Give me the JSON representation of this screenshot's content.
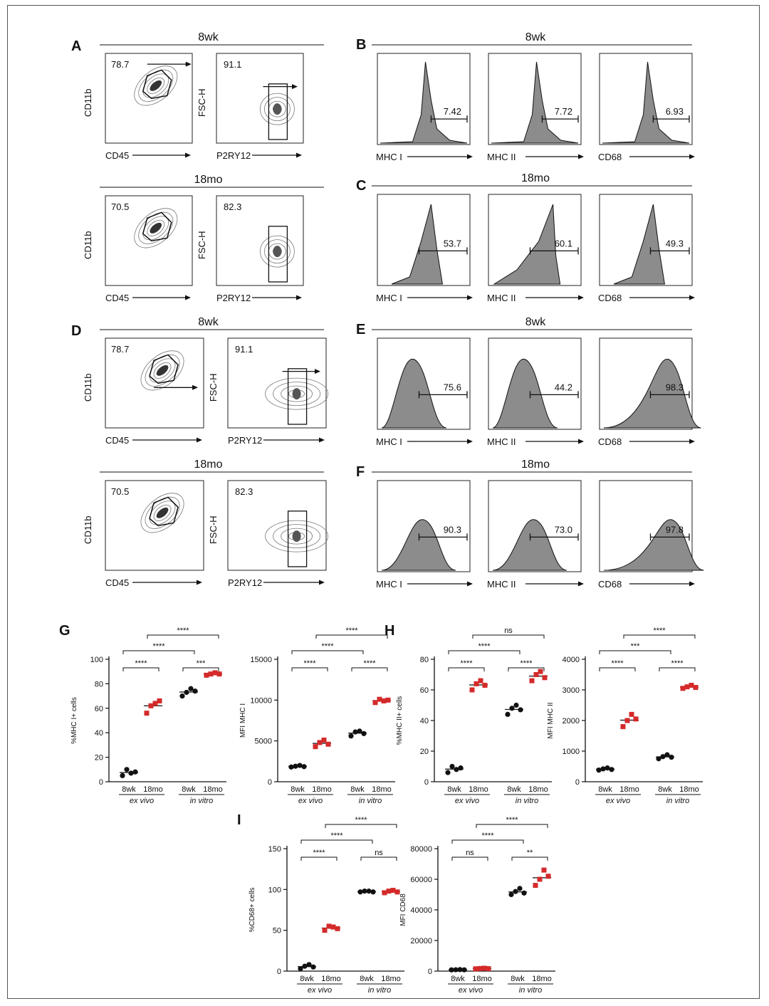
{
  "panels": {
    "A": {
      "letter": "A",
      "top": {
        "title": "8wk",
        "pct1": "78.7",
        "pct2": "91.1"
      },
      "bottom": {
        "title": "18mo",
        "pct1": "70.5",
        "pct2": "82.3"
      },
      "axes": {
        "y1": "CD11b",
        "x1": "CD45",
        "y2": "FSC-H",
        "x2": "P2RY12"
      }
    },
    "B": {
      "letter": "B",
      "title": "8wk",
      "hists": [
        {
          "xlabel": "MHC I",
          "value": "7.42"
        },
        {
          "xlabel": "MHC II",
          "value": "7.72"
        },
        {
          "xlabel": "CD68",
          "value": "6.93"
        }
      ]
    },
    "C": {
      "letter": "C",
      "title": "18mo",
      "hists": [
        {
          "xlabel": "MHC I",
          "value": "53.7"
        },
        {
          "xlabel": "MHC II",
          "value": "60.1"
        },
        {
          "xlabel": "CD68",
          "value": "49.3"
        }
      ]
    },
    "D": {
      "letter": "D",
      "top": {
        "title": "8wk",
        "pct1": "78.7",
        "pct2": "91.1"
      },
      "bottom": {
        "title": "18mo",
        "pct1": "70.5",
        "pct2": "82.3"
      },
      "axes": {
        "y1": "CD11b",
        "x1": "CD45",
        "y2": "FSC-H",
        "x2": "P2RY12"
      }
    },
    "E": {
      "letter": "E",
      "title": "8wk",
      "hists": [
        {
          "xlabel": "MHC I",
          "value": "75.6"
        },
        {
          "xlabel": "MHC II",
          "value": "44.2"
        },
        {
          "xlabel": "CD68",
          "value": "98.3"
        }
      ]
    },
    "F": {
      "letter": "F",
      "title": "18mo",
      "hists": [
        {
          "xlabel": "MHC I",
          "value": "90.3"
        },
        {
          "xlabel": "MHC II",
          "value": "73.0"
        },
        {
          "xlabel": "CD68",
          "value": "97.8"
        }
      ]
    }
  },
  "letters": {
    "G": "G",
    "H": "H",
    "I": "I"
  },
  "group_labels": {
    "wk": "8wk",
    "mo": "18mo",
    "exvivo": "ex vivo",
    "invitro": "in vitro"
  },
  "chart_data": [
    {
      "type": "scatter",
      "id": "G1",
      "ylabel": "%MHC I+ cells",
      "ylim": [
        0,
        100
      ],
      "yticks": [
        0,
        20,
        40,
        60,
        80,
        100
      ],
      "groups": [
        {
          "name": "8wk ex vivo",
          "values": [
            5,
            10,
            7,
            8
          ]
        },
        {
          "name": "18mo ex vivo",
          "values": [
            56,
            62,
            64,
            66
          ]
        },
        {
          "name": "8wk in vitro",
          "values": [
            70,
            73,
            76,
            74
          ]
        },
        {
          "name": "18mo in vitro",
          "values": [
            87,
            88,
            89,
            88
          ]
        }
      ],
      "brackets": [
        {
          "label": "****"
        },
        {
          "label": "***"
        },
        {
          "label": "****"
        },
        {
          "label": "****"
        }
      ]
    },
    {
      "type": "scatter",
      "id": "G2",
      "ylabel": "MFI MHC I",
      "ylim": [
        0,
        15000
      ],
      "yticks": [
        0,
        5000,
        10000,
        15000
      ],
      "groups": [
        {
          "name": "8wk ex vivo",
          "values": [
            1800,
            1900,
            2000,
            1850
          ]
        },
        {
          "name": "18mo ex vivo",
          "values": [
            4300,
            4800,
            5100,
            4600
          ]
        },
        {
          "name": "8wk in vitro",
          "values": [
            5600,
            6100,
            6200,
            5900
          ]
        },
        {
          "name": "18mo in vitro",
          "values": [
            9700,
            10100,
            9900,
            10000
          ]
        }
      ],
      "brackets": [
        {
          "label": "****"
        },
        {
          "label": "****"
        },
        {
          "label": "****"
        },
        {
          "label": "****"
        }
      ]
    },
    {
      "type": "scatter",
      "id": "H1",
      "ylabel": "%MHC II+ cells",
      "ylim": [
        0,
        80
      ],
      "yticks": [
        0,
        20,
        40,
        60,
        80
      ],
      "groups": [
        {
          "name": "8wk ex vivo",
          "values": [
            6,
            10,
            8,
            9
          ]
        },
        {
          "name": "18mo ex vivo",
          "values": [
            60,
            64,
            66,
            63
          ]
        },
        {
          "name": "8wk in vitro",
          "values": [
            44,
            48,
            50,
            47
          ]
        },
        {
          "name": "18mo in vitro",
          "values": [
            66,
            70,
            72,
            68
          ]
        }
      ],
      "brackets": [
        {
          "label": "****"
        },
        {
          "label": "****"
        },
        {
          "label": "****"
        },
        {
          "label": "ns"
        }
      ]
    },
    {
      "type": "scatter",
      "id": "H2",
      "ylabel": "MFI MHC II",
      "ylim": [
        0,
        4000
      ],
      "yticks": [
        0,
        1000,
        2000,
        3000,
        4000
      ],
      "groups": [
        {
          "name": "8wk ex vivo",
          "values": [
            380,
            420,
            450,
            400
          ]
        },
        {
          "name": "18mo ex vivo",
          "values": [
            1800,
            2000,
            2200,
            2050
          ]
        },
        {
          "name": "8wk in vitro",
          "values": [
            750,
            820,
            880,
            800
          ]
        },
        {
          "name": "18mo in vitro",
          "values": [
            3050,
            3100,
            3150,
            3080
          ]
        }
      ],
      "brackets": [
        {
          "label": "****"
        },
        {
          "label": "****"
        },
        {
          "label": "***"
        },
        {
          "label": "****"
        }
      ]
    },
    {
      "type": "scatter",
      "id": "I1",
      "ylabel": "%CD68+ cells",
      "ylim": [
        0,
        150
      ],
      "yticks": [
        0,
        50,
        100,
        150
      ],
      "groups": [
        {
          "name": "8wk ex vivo",
          "values": [
            3,
            6,
            8,
            5
          ]
        },
        {
          "name": "18mo ex vivo",
          "values": [
            50,
            55,
            54,
            52
          ]
        },
        {
          "name": "8wk in vitro",
          "values": [
            97,
            98,
            98,
            97
          ]
        },
        {
          "name": "18mo in vitro",
          "values": [
            96,
            98,
            99,
            97
          ]
        }
      ],
      "brackets": [
        {
          "label": "****"
        },
        {
          "label": "ns"
        },
        {
          "label": "****"
        },
        {
          "label": "****"
        }
      ]
    },
    {
      "type": "scatter",
      "id": "I2",
      "ylabel": "MFI CD68",
      "ylim": [
        0,
        80000
      ],
      "yticks": [
        0,
        20000,
        40000,
        60000,
        80000
      ],
      "groups": [
        {
          "name": "8wk ex vivo",
          "values": [
            800,
            900,
            1000,
            850
          ]
        },
        {
          "name": "18mo ex vivo",
          "values": [
            1500,
            1700,
            1900,
            1600
          ]
        },
        {
          "name": "8wk in vitro",
          "values": [
            50000,
            52000,
            54000,
            51000
          ]
        },
        {
          "name": "18mo in vitro",
          "values": [
            56000,
            60000,
            66000,
            62000
          ]
        }
      ],
      "brackets": [
        {
          "label": "ns"
        },
        {
          "label": "**"
        },
        {
          "label": "****"
        },
        {
          "label": "****"
        }
      ]
    }
  ]
}
